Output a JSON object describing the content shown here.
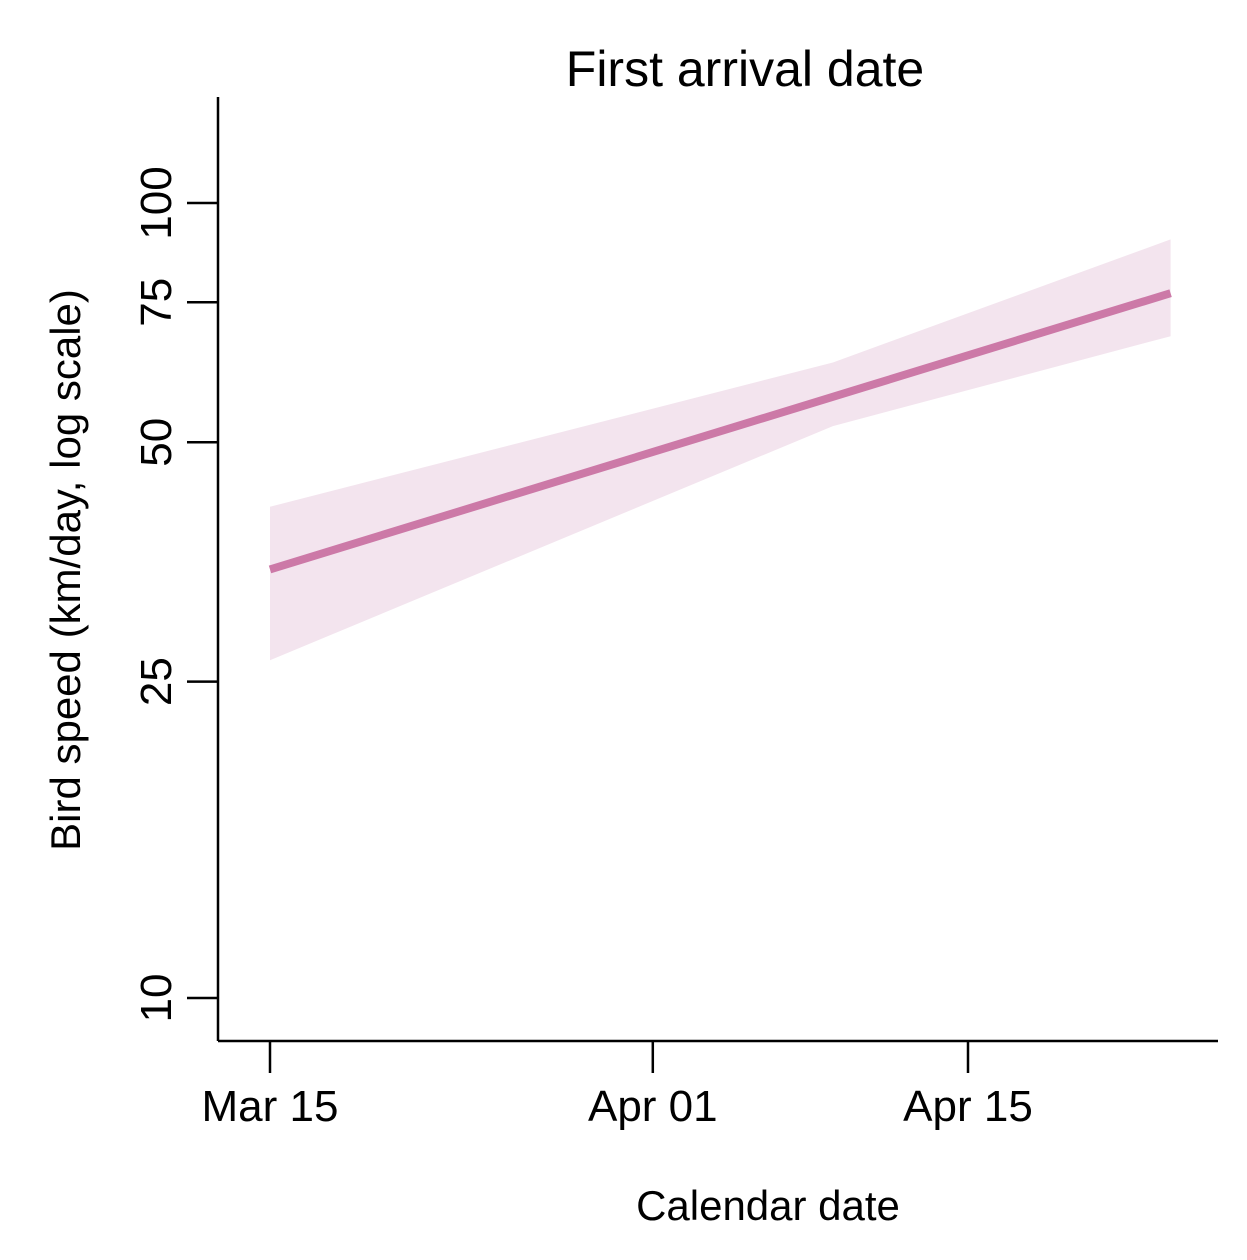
{
  "chart_data": {
    "type": "line",
    "title": "First arrival date",
    "xlabel": "Calendar date",
    "ylabel": "Bird speed (km/day, log scale)",
    "y_scale": "log",
    "grid": false,
    "legend": "none",
    "xlim": [
      "2019-03-11",
      "2019-04-25"
    ],
    "ylim": [
      9.4,
      122
    ],
    "x_ticks": [
      {
        "value": "2019-03-15",
        "label": "Mar 15"
      },
      {
        "value": "2019-04-01",
        "label": "Apr 01"
      },
      {
        "value": "2019-04-15",
        "label": "Apr 15"
      }
    ],
    "y_ticks": [
      {
        "value": 10,
        "label": "10"
      },
      {
        "value": 25,
        "label": "25"
      },
      {
        "value": 50,
        "label": "50"
      },
      {
        "value": 75,
        "label": "75"
      },
      {
        "value": 100,
        "label": "100"
      }
    ],
    "series": [
      {
        "color": "#cc79a7",
        "band_color": "#f3e4ee",
        "points": [
          {
            "x": "2019-03-15",
            "y": 34.6,
            "lower": 26.6,
            "upper": 41.5
          },
          {
            "x": "2019-04-09",
            "y": 57.2,
            "lower": 52.4,
            "upper": 63.0
          },
          {
            "x": "2019-04-24",
            "y": 77.0,
            "lower": 68.0,
            "upper": 90.0
          }
        ]
      }
    ]
  }
}
